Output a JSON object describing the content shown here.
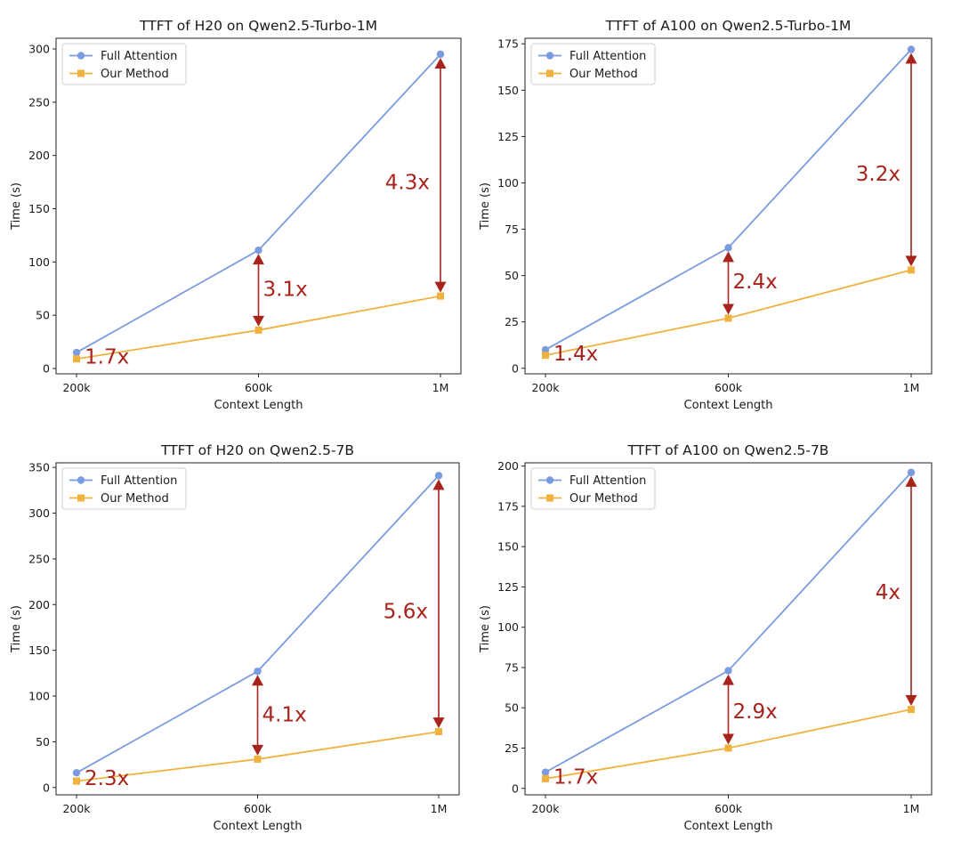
{
  "colors": {
    "full_attention": "#7b9be0",
    "our_method": "#f0b13f",
    "annotation": "#a8231c",
    "axes": "#222222"
  },
  "chart_data": [
    {
      "type": "line",
      "title": "TTFT of H20 on Qwen2.5-Turbo-1M",
      "xlabel": "Context Length",
      "ylabel": "Time (s)",
      "categories": [
        "200k",
        "600k",
        "1M"
      ],
      "ylim": [
        -5,
        310
      ],
      "yticks": [
        0,
        50,
        100,
        150,
        200,
        250,
        300
      ],
      "legend": "top-left",
      "grid": false,
      "series": [
        {
          "name": "Full Attention",
          "marker": "circle",
          "values": [
            15,
            111,
            295
          ]
        },
        {
          "name": "Our Method",
          "marker": "square",
          "values": [
            9,
            36,
            68
          ]
        }
      ],
      "annotations": [
        {
          "label": "1.7x",
          "category_index": 0,
          "arrow": false
        },
        {
          "label": "3.1x",
          "category_index": 1,
          "arrow": true,
          "label_y": 75
        },
        {
          "label": "4.3x",
          "category_index": 2,
          "arrow": true,
          "label_y": 175
        }
      ]
    },
    {
      "type": "line",
      "title": "TTFT of A100 on Qwen2.5-Turbo-1M",
      "xlabel": "Context Length",
      "ylabel": "Time (s)",
      "categories": [
        "200k",
        "600k",
        "1M"
      ],
      "ylim": [
        -3,
        178
      ],
      "yticks": [
        0,
        25,
        50,
        75,
        100,
        125,
        150,
        175
      ],
      "legend": "top-left",
      "grid": false,
      "series": [
        {
          "name": "Full Attention",
          "marker": "circle",
          "values": [
            10,
            65,
            172
          ]
        },
        {
          "name": "Our Method",
          "marker": "square",
          "values": [
            7,
            27,
            53
          ]
        }
      ],
      "annotations": [
        {
          "label": "1.4x",
          "category_index": 0,
          "arrow": false
        },
        {
          "label": "2.4x",
          "category_index": 1,
          "arrow": true,
          "label_y": 47
        },
        {
          "label": "3.2x",
          "category_index": 2,
          "arrow": true,
          "label_y": 105
        }
      ]
    },
    {
      "type": "line",
      "title": "TTFT of H20 on Qwen2.5-7B",
      "xlabel": "Context Length",
      "ylabel": "Time (s)",
      "categories": [
        "200k",
        "600k",
        "1M"
      ],
      "ylim": [
        -8,
        355
      ],
      "yticks": [
        0,
        50,
        100,
        150,
        200,
        250,
        300,
        350
      ],
      "legend": "top-left",
      "grid": false,
      "series": [
        {
          "name": "Full Attention",
          "marker": "circle",
          "values": [
            16,
            127,
            341
          ]
        },
        {
          "name": "Our Method",
          "marker": "square",
          "values": [
            7,
            31,
            61
          ]
        }
      ],
      "annotations": [
        {
          "label": "2.3x",
          "category_index": 0,
          "arrow": false
        },
        {
          "label": "4.1x",
          "category_index": 1,
          "arrow": true,
          "label_y": 80
        },
        {
          "label": "5.6x",
          "category_index": 2,
          "arrow": true,
          "label_y": 193
        }
      ]
    },
    {
      "type": "line",
      "title": "TTFT of A100 on Qwen2.5-7B",
      "xlabel": "Context Length",
      "ylabel": "Time (s)",
      "categories": [
        "200k",
        "600k",
        "1M"
      ],
      "ylim": [
        -4,
        202
      ],
      "yticks": [
        0,
        25,
        50,
        75,
        100,
        125,
        150,
        175,
        200
      ],
      "legend": "top-left",
      "grid": false,
      "series": [
        {
          "name": "Full Attention",
          "marker": "circle",
          "values": [
            10,
            73,
            196
          ]
        },
        {
          "name": "Our Method",
          "marker": "square",
          "values": [
            6,
            25,
            49
          ]
        }
      ],
      "annotations": [
        {
          "label": "1.7x",
          "category_index": 0,
          "arrow": false
        },
        {
          "label": "2.9x",
          "category_index": 1,
          "arrow": true,
          "label_y": 48
        },
        {
          "label": "4x",
          "category_index": 2,
          "arrow": true,
          "label_y": 122
        }
      ]
    }
  ]
}
